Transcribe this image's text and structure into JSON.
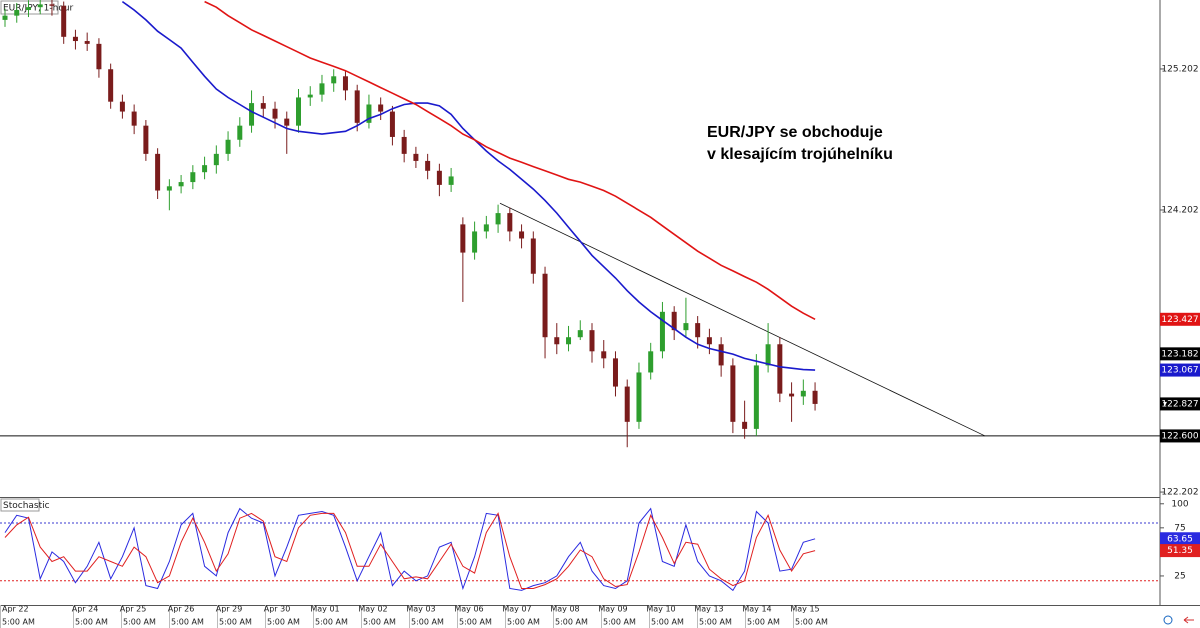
{
  "chart_data": {
    "type": "candlestick",
    "title": "EUR/JPY, 1-hour",
    "annotation": [
      "EUR/JPY se obchoduje",
      "v klesajícím trojúhelníku"
    ],
    "categories": [
      "Apr 22",
      "Apr 24",
      "Apr 25",
      "Apr 26",
      "Apr 29",
      "Apr 30",
      "May 01",
      "May 02",
      "May 03",
      "May 06",
      "May 07",
      "May 08",
      "May 09",
      "May 10",
      "May 13",
      "May 14",
      "May 15"
    ],
    "time_labels": [
      "5:00 AM",
      "5:00 AM",
      "5:00 AM",
      "5:00 AM",
      "5:00 AM",
      "5:00 AM",
      "5:00 AM",
      "5:00 AM",
      "5:00 AM",
      "5:00 AM",
      "5:00 AM",
      "5:00 AM",
      "5:00 AM",
      "5:00 AM",
      "5:00 AM",
      "5:00 AM",
      "5:00 AM"
    ],
    "up_color": "#2e9e2e",
    "down_color": "#7a1c1c",
    "candles": [
      [
        125.55,
        125.63,
        125.5,
        125.58
      ],
      [
        125.58,
        125.67,
        125.53,
        125.62
      ],
      [
        125.62,
        125.69,
        125.57,
        125.64
      ],
      [
        125.64,
        125.7,
        125.59,
        125.66
      ],
      [
        125.66,
        125.7,
        125.58,
        125.65
      ],
      [
        125.65,
        125.68,
        125.38,
        125.43
      ],
      [
        125.43,
        125.48,
        125.34,
        125.4
      ],
      [
        125.4,
        125.46,
        125.33,
        125.38
      ],
      [
        125.38,
        125.42,
        125.14,
        125.2
      ],
      [
        125.2,
        125.24,
        124.92,
        124.97
      ],
      [
        124.97,
        125.02,
        124.85,
        124.9
      ],
      [
        124.9,
        124.95,
        124.74,
        124.8
      ],
      [
        124.8,
        124.84,
        124.55,
        124.6
      ],
      [
        124.6,
        124.64,
        124.28,
        124.34
      ],
      [
        124.34,
        124.42,
        124.2,
        124.37
      ],
      [
        124.37,
        124.45,
        124.32,
        124.4
      ],
      [
        124.4,
        124.52,
        124.35,
        124.47
      ],
      [
        124.47,
        124.58,
        124.42,
        124.52
      ],
      [
        124.52,
        124.66,
        124.46,
        124.6
      ],
      [
        124.6,
        124.76,
        124.55,
        124.7
      ],
      [
        124.7,
        124.86,
        124.65,
        124.8
      ],
      [
        124.8,
        125.05,
        124.75,
        124.96
      ],
      [
        124.96,
        125.01,
        124.86,
        124.92
      ],
      [
        124.92,
        124.97,
        124.78,
        124.85
      ],
      [
        124.85,
        124.9,
        124.6,
        124.8
      ],
      [
        124.8,
        125.06,
        124.75,
        125.0
      ],
      [
        125.0,
        125.08,
        124.94,
        125.02
      ],
      [
        125.02,
        125.16,
        124.97,
        125.1
      ],
      [
        125.1,
        125.2,
        125.04,
        125.15
      ],
      [
        125.15,
        125.19,
        124.98,
        125.05
      ],
      [
        125.05,
        125.09,
        124.76,
        124.82
      ],
      [
        124.82,
        125.02,
        124.78,
        124.95
      ],
      [
        124.95,
        125.0,
        124.84,
        124.9
      ],
      [
        124.9,
        124.94,
        124.66,
        124.72
      ],
      [
        124.72,
        124.77,
        124.54,
        124.6
      ],
      [
        124.6,
        124.65,
        124.5,
        124.55
      ],
      [
        124.55,
        124.6,
        124.42,
        124.48
      ],
      [
        124.48,
        124.53,
        124.3,
        124.38
      ],
      [
        124.38,
        124.5,
        124.33,
        124.44
      ],
      [
        124.1,
        124.15,
        123.55,
        123.9
      ],
      [
        123.9,
        124.12,
        123.85,
        124.05
      ],
      [
        124.05,
        124.16,
        124.0,
        124.1
      ],
      [
        124.1,
        124.24,
        124.04,
        124.18
      ],
      [
        124.18,
        124.22,
        123.98,
        124.05
      ],
      [
        124.05,
        124.1,
        123.93,
        124.0
      ],
      [
        124.0,
        124.05,
        123.68,
        123.75
      ],
      [
        123.75,
        123.8,
        123.15,
        123.3
      ],
      [
        123.3,
        123.4,
        123.18,
        123.25
      ],
      [
        123.25,
        123.38,
        123.2,
        123.3
      ],
      [
        123.3,
        123.42,
        123.28,
        123.35
      ],
      [
        123.35,
        123.4,
        123.12,
        123.2
      ],
      [
        123.2,
        123.28,
        123.08,
        123.15
      ],
      [
        123.15,
        123.2,
        122.88,
        122.95
      ],
      [
        122.95,
        123.0,
        122.52,
        122.7
      ],
      [
        122.7,
        123.12,
        122.65,
        123.05
      ],
      [
        123.05,
        123.26,
        123.0,
        123.2
      ],
      [
        123.2,
        123.55,
        123.15,
        123.48
      ],
      [
        123.48,
        123.52,
        123.28,
        123.35
      ],
      [
        123.35,
        123.58,
        123.3,
        123.4
      ],
      [
        123.4,
        123.45,
        123.22,
        123.3
      ],
      [
        123.3,
        123.36,
        123.18,
        123.25
      ],
      [
        123.25,
        123.3,
        123.02,
        123.1
      ],
      [
        123.1,
        123.15,
        122.62,
        122.7
      ],
      [
        122.7,
        122.85,
        122.58,
        122.65
      ],
      [
        122.65,
        123.18,
        122.6,
        123.1
      ],
      [
        123.1,
        123.4,
        123.05,
        123.25
      ],
      [
        123.25,
        123.3,
        122.84,
        122.9
      ],
      [
        122.9,
        122.98,
        122.7,
        122.88
      ],
      [
        122.88,
        123.0,
        122.82,
        122.92
      ],
      [
        122.92,
        122.98,
        122.78,
        122.827
      ]
    ],
    "moving_averages": [
      {
        "color": "#1a1acc",
        "values": [
          null,
          null,
          null,
          null,
          null,
          null,
          null,
          null,
          null,
          null,
          125.68,
          125.62,
          125.55,
          125.47,
          125.41,
          125.35,
          125.25,
          125.15,
          125.06,
          125.0,
          124.95,
          124.9,
          124.86,
          124.82,
          124.78,
          124.76,
          124.75,
          124.74,
          124.75,
          124.76,
          124.8,
          124.85,
          124.88,
          124.92,
          124.95,
          124.96,
          124.96,
          124.94,
          124.88,
          124.78,
          124.7,
          124.62,
          124.55,
          124.49,
          124.42,
          124.35,
          124.27,
          124.18,
          124.08,
          123.98,
          123.88,
          123.8,
          123.72,
          123.63,
          123.55,
          123.48,
          123.42,
          123.36,
          123.3,
          123.25,
          123.22,
          123.2,
          123.18,
          123.15,
          123.13,
          123.11,
          123.09,
          123.08,
          123.07,
          123.067
        ]
      },
      {
        "color": "#e01414",
        "values": [
          null,
          null,
          null,
          null,
          null,
          null,
          null,
          null,
          null,
          null,
          null,
          null,
          null,
          null,
          null,
          null,
          null,
          125.68,
          125.64,
          125.58,
          125.53,
          125.48,
          125.44,
          125.4,
          125.36,
          125.32,
          125.28,
          125.25,
          125.22,
          125.19,
          125.15,
          125.11,
          125.07,
          125.03,
          124.99,
          124.95,
          124.9,
          124.85,
          124.8,
          124.74,
          124.7,
          124.65,
          124.61,
          124.57,
          124.54,
          124.51,
          124.48,
          124.45,
          124.42,
          124.4,
          124.37,
          124.34,
          124.3,
          124.25,
          124.2,
          124.15,
          124.09,
          124.03,
          123.97,
          123.91,
          123.86,
          123.81,
          123.77,
          123.73,
          123.69,
          123.64,
          123.58,
          123.52,
          123.47,
          123.427
        ]
      }
    ],
    "ylim": [
      122.167,
      125.691
    ],
    "yticks": [
      125.202,
      124.202,
      122.202
    ],
    "price_tags": [
      {
        "value": 123.182,
        "color": "#000000"
      },
      {
        "value": 122.6,
        "label": "122.600",
        "color": "#000000"
      }
    ],
    "trendline": [
      124.25,
      122.6
    ],
    "stochastic": {
      "title": "Stochastic",
      "ylim": [
        0,
        106
      ],
      "yticks": [
        100,
        75,
        25
      ],
      "levels": [
        {
          "value": 80,
          "color": "#3a3ad0"
        },
        {
          "value": 20,
          "color": "#e02020"
        }
      ],
      "series": [
        {
          "color": "#2a2ae0",
          "values": [
            70,
            88,
            85,
            22,
            50,
            40,
            18,
            35,
            60,
            22,
            45,
            75,
            15,
            12,
            40,
            78,
            90,
            35,
            25,
            70,
            95,
            85,
            80,
            25,
            55,
            88,
            90,
            92,
            88,
            55,
            20,
            45,
            70,
            15,
            30,
            20,
            25,
            55,
            60,
            12,
            45,
            90,
            88,
            12,
            10,
            15,
            18,
            25,
            45,
            60,
            30,
            15,
            12,
            20,
            80,
            95,
            40,
            35,
            78,
            40,
            25,
            20,
            10,
            30,
            92,
            80,
            30,
            32,
            60,
            63.65
          ]
        },
        {
          "color": "#e02020",
          "values": [
            65,
            78,
            86,
            55,
            40,
            45,
            30,
            30,
            45,
            40,
            35,
            55,
            45,
            18,
            25,
            60,
            85,
            60,
            30,
            48,
            85,
            90,
            82,
            45,
            40,
            75,
            88,
            90,
            90,
            70,
            35,
            35,
            58,
            40,
            22,
            24,
            22,
            40,
            58,
            35,
            28,
            70,
            90,
            45,
            12,
            12,
            16,
            22,
            35,
            52,
            45,
            22,
            14,
            16,
            50,
            88,
            65,
            38,
            60,
            58,
            32,
            22,
            15,
            20,
            65,
            88,
            52,
            30,
            48,
            51.35
          ]
        }
      ]
    }
  }
}
